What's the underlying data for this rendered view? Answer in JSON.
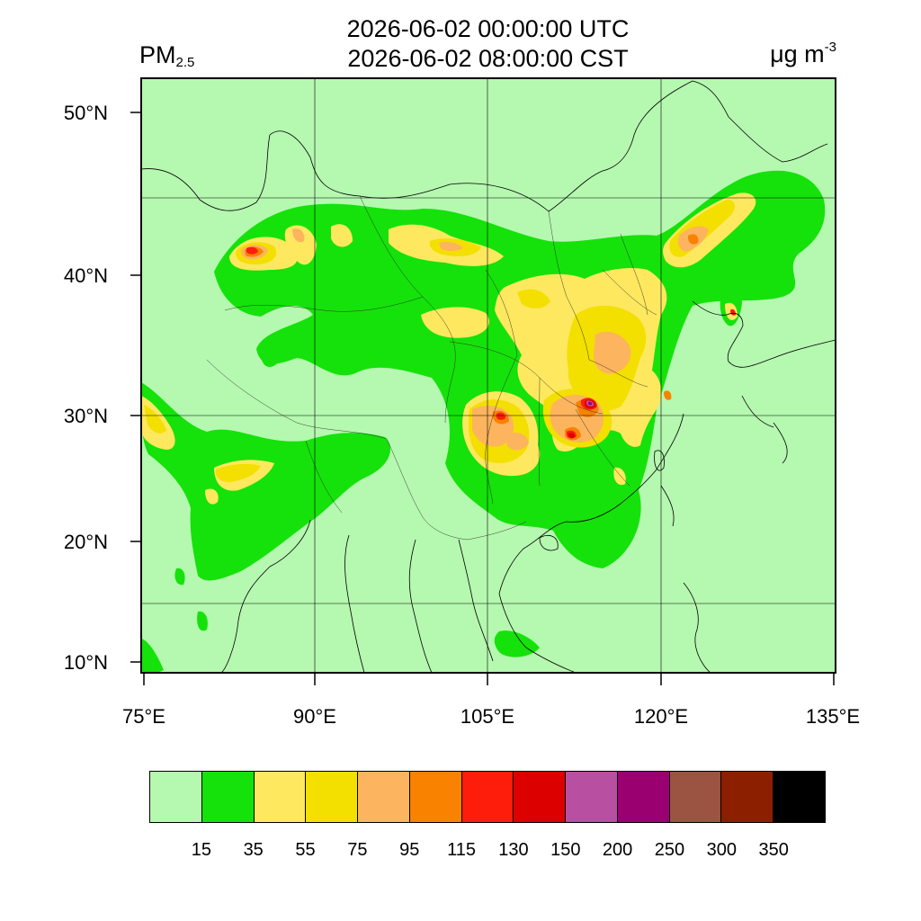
{
  "header": {
    "time_utc": "2026-06-02 00:00:00 UTC",
    "time_local": "2026-06-02 08:00:00 CST",
    "variable_main": "PM",
    "variable_sub": "2.5",
    "units_main": "μg m",
    "units_sup": "-3"
  },
  "map": {
    "lat_labels": [
      "50°N",
      "40°N",
      "30°N",
      "20°N",
      "10°N"
    ],
    "lon_labels": [
      "75°E",
      "90°E",
      "105°E",
      "120°E",
      "135°E"
    ],
    "background_color": "#b5f8b0",
    "grid_on": true
  },
  "colorbar": {
    "colors": [
      "#b5f8b0",
      "#15e20a",
      "#fee85f",
      "#f3df00",
      "#fdb45e",
      "#f98200",
      "#fe1c0b",
      "#dd0000",
      "#b94fa0",
      "#9b0071",
      "#9b5342",
      "#8b1f00",
      "#000000"
    ],
    "labels": [
      "15",
      "35",
      "55",
      "75",
      "95",
      "115",
      "130",
      "150",
      "200",
      "250",
      "300",
      "350"
    ]
  }
}
